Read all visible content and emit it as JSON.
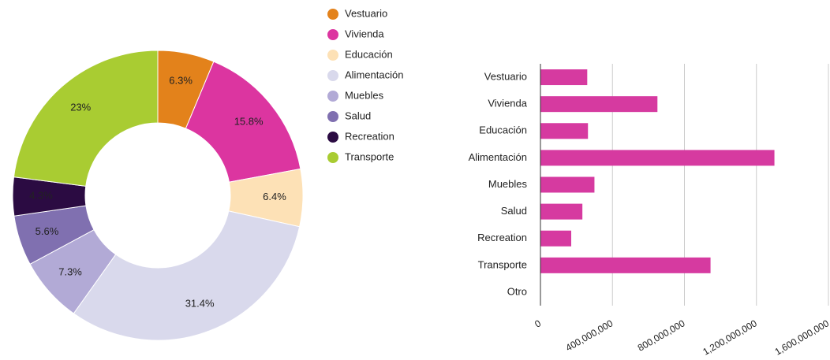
{
  "chart_data": [
    {
      "type": "pie",
      "categories": [
        "Vestuario",
        "Vivienda",
        "Educación",
        "Alimentación",
        "Muebles",
        "Salud",
        "Recreation",
        "Transporte"
      ],
      "values": [
        6.3,
        15.8,
        6.4,
        31.4,
        7.3,
        5.6,
        4.3,
        23
      ],
      "value_labels": [
        "6.3%",
        "15.8%",
        "6.4%",
        "31.4%",
        "7.3%",
        "5.6%",
        "4.3%",
        "23%"
      ],
      "colors": [
        "#e3821b",
        "#dc35a0",
        "#fde1b6",
        "#d9d9ec",
        "#b2aad6",
        "#8070b0",
        "#2b0b42",
        "#a9cc32"
      ],
      "donut": true,
      "legend": "right"
    },
    {
      "type": "hbar",
      "categories": [
        "Vestuario",
        "Vivienda",
        "Educación",
        "Alimentación",
        "Muebles",
        "Salud",
        "Recreation",
        "Transporte",
        "Otro"
      ],
      "values": [
        260000000,
        650000000,
        264000000,
        1300000000,
        300000000,
        233000000,
        171000000,
        945000000,
        0
      ],
      "color": "#d63aa0",
      "xlim": [
        0,
        1600000000
      ],
      "xticks": [
        0,
        {
          "value": 400000000,
          "label": "400,000,000"
        },
        {
          "value": 800000000,
          "label": "800,000,000"
        },
        {
          "value": 1200000000,
          "label": "1,200,000,000"
        },
        {
          "value": 1600000000,
          "label": "1,600,000,000"
        }
      ],
      "grid": true
    }
  ]
}
